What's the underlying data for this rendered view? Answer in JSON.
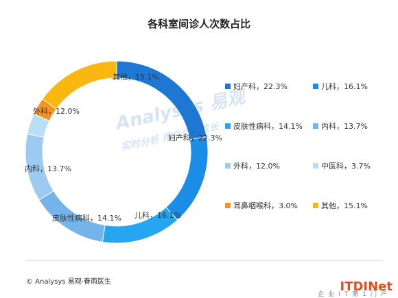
{
  "title": "各科室间诊人次数占比",
  "footer": "© Analysys 易观·春雨医生",
  "watermark": {
    "text": "Analysys 易观",
    "slogan": "实时分析 用户资产成长",
    "logo": "企业IT第1门户"
  },
  "chart_data": {
    "type": "pie",
    "donut": true,
    "legend_position": "right",
    "categories": [
      "妇产科",
      "儿科",
      "皮肤性病科",
      "内科",
      "外科",
      "中医科",
      "耳鼻咽喉科",
      "其他"
    ],
    "values": [
      22.3,
      16.1,
      14.1,
      13.7,
      12.0,
      3.7,
      3.0,
      15.1
    ],
    "colors": [
      "#1f77d4",
      "#1a8de6",
      "#26a5f0",
      "#74b4ea",
      "#9ccaf0",
      "#b8dff6",
      "#f7931e",
      "#f9b710"
    ],
    "slice_labels": [
      "妇产科，22.3%",
      "儿科，16.1%",
      "皮肤性病科，14.1%",
      "内科，13.7%",
      "外科，12.0%",
      "",
      "",
      "其他，15.1%"
    ],
    "legend_labels": [
      "妇产科，22.3%",
      "儿科，16.1%",
      "皮肤性病科，14.1%",
      "内科，13.7%",
      "外科，12.0%",
      "中医科，3.7%",
      "耳鼻咽喉科，3.0%",
      "其他，15.1%"
    ]
  }
}
